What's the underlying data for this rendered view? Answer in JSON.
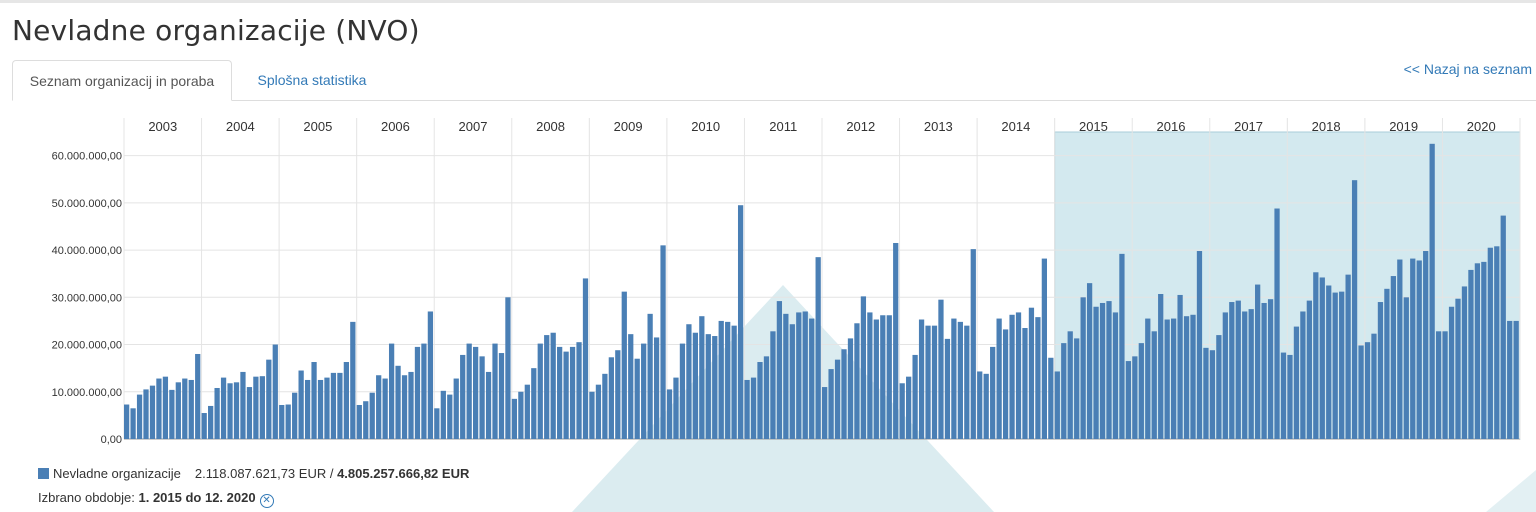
{
  "page": {
    "title": "Nevladne organizacije (NVO)"
  },
  "tabs": [
    {
      "label": "Seznam organizacij in poraba",
      "active": true
    },
    {
      "label": "Splošna statistika",
      "active": false
    }
  ],
  "back_link": "<< Nazaj na seznam",
  "legend": {
    "swatch_color": "#4a7fb5",
    "series_label": "Nevladne organizacije",
    "selected_total": "2.118.087.621,73 EUR /",
    "grand_total": "4.805.257.666,82 EUR"
  },
  "period": {
    "label": "Izbrano obdobje:",
    "value": "1. 2015 do 12. 2020",
    "clear_icon": "circle-x-icon"
  },
  "chart_data": {
    "type": "bar",
    "frequency": "monthly",
    "years": [
      "2003",
      "2004",
      "2005",
      "2006",
      "2007",
      "2008",
      "2009",
      "2010",
      "2011",
      "2012",
      "2013",
      "2014",
      "2015",
      "2016",
      "2017",
      "2018",
      "2019",
      "2020"
    ],
    "y_ticks": [
      "0,00",
      "10.000.000,00",
      "20.000.000,00",
      "30.000.000,00",
      "40.000.000,00",
      "50.000.000,00",
      "60.000.000,00"
    ],
    "ylim": [
      0,
      65000000
    ],
    "grid": true,
    "bar_color": "#4a7fb5",
    "selection": {
      "from_year": "2015",
      "to_year": "2020",
      "color": "#d3e9ef"
    },
    "values_millions": [
      7.3,
      6.5,
      9.4,
      10.5,
      11.3,
      12.8,
      13.2,
      10.4,
      12.0,
      12.8,
      12.5,
      18.0,
      5.5,
      7.0,
      10.8,
      13.0,
      11.8,
      12.0,
      14.2,
      11.0,
      13.2,
      13.3,
      16.8,
      20.0,
      7.2,
      7.3,
      9.8,
      14.5,
      12.5,
      16.3,
      12.5,
      13.0,
      14.0,
      14.0,
      16.3,
      24.8,
      7.2,
      8.0,
      9.8,
      13.5,
      12.8,
      20.2,
      15.5,
      13.5,
      14.2,
      19.5,
      20.2,
      27.0,
      6.5,
      10.2,
      9.4,
      12.8,
      17.8,
      20.2,
      19.5,
      17.5,
      14.2,
      20.2,
      18.2,
      30.0,
      8.5,
      10.0,
      11.5,
      15.0,
      20.2,
      22.0,
      22.5,
      19.5,
      18.5,
      19.5,
      20.5,
      34.0,
      10.0,
      11.5,
      13.8,
      17.3,
      18.8,
      31.2,
      22.2,
      17.0,
      20.2,
      26.5,
      21.5,
      41.0,
      10.5,
      13.0,
      20.2,
      24.3,
      22.5,
      26.0,
      22.2,
      21.8,
      25.0,
      24.8,
      24.0,
      49.5,
      12.5,
      13.0,
      16.3,
      17.5,
      22.8,
      29.2,
      26.5,
      24.3,
      26.8,
      27.0,
      25.5,
      38.5,
      11.0,
      14.8,
      16.8,
      19.0,
      21.3,
      24.5,
      30.2,
      26.8,
      25.3,
      26.2,
      26.2,
      41.5,
      11.8,
      13.2,
      17.8,
      25.3,
      24.0,
      24.0,
      29.5,
      21.2,
      25.5,
      24.8,
      24.0,
      40.2,
      14.3,
      13.8,
      19.5,
      25.5,
      23.2,
      26.3,
      26.8,
      23.5,
      27.8,
      25.8,
      38.2,
      17.2,
      14.3,
      20.3,
      22.8,
      21.3,
      30.0,
      33.0,
      28.0,
      28.8,
      29.2,
      26.8,
      39.2,
      16.5,
      17.5,
      20.3,
      25.5,
      22.8,
      30.7,
      25.3,
      25.5,
      30.5,
      26.0,
      26.3,
      39.8,
      19.3,
      18.8,
      22.0,
      26.8,
      29.0,
      29.3,
      27.0,
      27.5,
      32.7,
      28.8,
      29.6,
      48.8,
      18.3,
      17.8,
      23.8,
      27.0,
      29.3,
      35.3,
      34.2,
      32.5,
      31.0,
      31.2,
      34.8,
      54.8,
      19.8,
      20.5,
      22.3,
      29.0,
      31.8,
      34.5,
      38.0,
      30.0,
      38.2,
      37.8,
      39.8,
      62.5,
      22.8,
      22.8,
      28.0,
      29.7,
      32.3,
      35.8,
      37.2,
      37.5,
      40.5,
      40.8,
      47.3,
      25.0,
      25.0
    ]
  }
}
